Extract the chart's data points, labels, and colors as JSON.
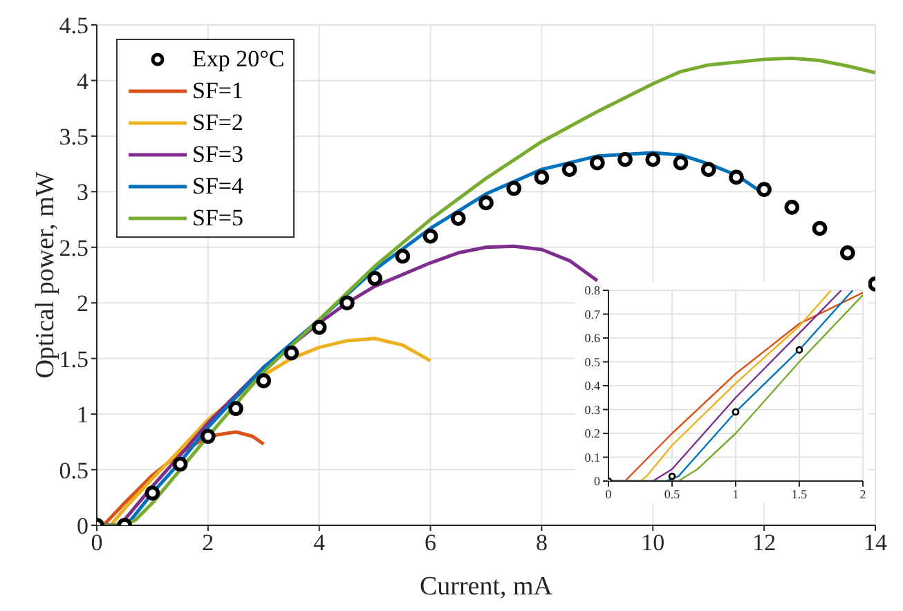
{
  "chart_data": [
    {
      "type": "line",
      "xlabel": "Current, mA",
      "ylabel": "Optical power, mW",
      "xlim": [
        0,
        14
      ],
      "ylim": [
        0,
        4.5
      ],
      "xticks": [
        0,
        2,
        4,
        6,
        8,
        10,
        12,
        14
      ],
      "yticks": [
        0,
        0.5,
        1,
        1.5,
        2,
        2.5,
        3,
        3.5,
        4,
        4.5
      ],
      "grid": true,
      "legend": "top left",
      "series": [
        {
          "name": "Exp 20°C",
          "type": "scatter",
          "marker": "circle",
          "color": "#000000",
          "x": [
            0,
            0.5,
            1,
            1.5,
            2,
            2.5,
            3,
            3.5,
            4,
            4.5,
            5,
            5.5,
            6,
            6.5,
            7,
            7.5,
            8,
            8.5,
            9,
            9.5,
            10,
            10.5,
            11,
            11.5,
            12,
            12.5,
            13,
            13.5,
            14
          ],
          "values": [
            0,
            0,
            0.29,
            0.55,
            0.8,
            1.05,
            1.3,
            1.55,
            1.78,
            2.0,
            2.22,
            2.42,
            2.6,
            2.76,
            2.9,
            3.03,
            3.13,
            3.2,
            3.26,
            3.29,
            3.29,
            3.26,
            3.2,
            3.13,
            3.02,
            2.86,
            2.67,
            2.45,
            2.17
          ]
        },
        {
          "name": "SF=1",
          "color": "#d95319",
          "x": [
            0,
            0.12,
            0.5,
            1,
            1.5,
            2,
            2.5,
            2.8,
            3
          ],
          "values": [
            0,
            0,
            0.2,
            0.45,
            0.65,
            0.8,
            0.84,
            0.8,
            0.73
          ]
        },
        {
          "name": "SF=2",
          "color": "#edb120",
          "x": [
            0,
            0.25,
            0.5,
            1,
            1.5,
            2,
            3,
            3.5,
            4,
            4.5,
            5,
            5.5,
            6
          ],
          "values": [
            0,
            0,
            0.15,
            0.42,
            0.68,
            0.95,
            1.35,
            1.5,
            1.6,
            1.66,
            1.68,
            1.62,
            1.48
          ]
        },
        {
          "name": "SF=3",
          "color": "#7e2f8e",
          "x": [
            0,
            0.35,
            0.5,
            1,
            1.5,
            2,
            3,
            4,
            4.5,
            5,
            6,
            6.5,
            7,
            7.5,
            8,
            8.5,
            9
          ],
          "values": [
            0,
            0,
            0.05,
            0.35,
            0.63,
            0.92,
            1.42,
            1.82,
            2.0,
            2.15,
            2.36,
            2.45,
            2.5,
            2.51,
            2.48,
            2.38,
            2.2
          ]
        },
        {
          "name": "SF=4",
          "color": "#0072bd",
          "x": [
            0,
            0.45,
            0.6,
            1,
            1.5,
            2,
            3,
            4,
            5,
            6,
            7,
            8,
            9,
            10,
            10.5,
            11,
            11.5,
            12
          ],
          "values": [
            0,
            0,
            0.04,
            0.29,
            0.57,
            0.88,
            1.42,
            1.85,
            2.3,
            2.67,
            2.98,
            3.2,
            3.32,
            3.35,
            3.33,
            3.25,
            3.15,
            2.98
          ]
        },
        {
          "name": "SF=5",
          "color": "#77ac30",
          "x": [
            0,
            0.5,
            0.7,
            1,
            1.5,
            2,
            3,
            4,
            5,
            6,
            7,
            8,
            9,
            10,
            10.5,
            11,
            12,
            12.5,
            13,
            13.5,
            14
          ],
          "values": [
            0,
            0,
            0.05,
            0.2,
            0.5,
            0.8,
            1.38,
            1.85,
            2.33,
            2.75,
            3.12,
            3.45,
            3.72,
            3.97,
            4.08,
            4.14,
            4.19,
            4.2,
            4.18,
            4.13,
            4.07
          ]
        }
      ]
    },
    {
      "type": "line",
      "xlim": [
        0,
        2
      ],
      "ylim": [
        0,
        0.8
      ],
      "xticks": [
        0,
        0.5,
        1,
        1.5,
        2
      ],
      "yticks": [
        0,
        0.1,
        0.2,
        0.3,
        0.4,
        0.5,
        0.6,
        0.7,
        0.8
      ],
      "grid": true,
      "series": [
        {
          "type": "scatter",
          "marker": "circle",
          "color": "#000000",
          "x": [
            0,
            0.5,
            1,
            1.5
          ],
          "values": [
            0,
            0.02,
            0.29,
            0.55
          ]
        },
        {
          "color": "#d95319",
          "x": [
            0,
            0.13,
            0.5,
            1,
            1.5,
            2
          ],
          "values": [
            0,
            0,
            0.2,
            0.45,
            0.66,
            0.79
          ]
        },
        {
          "color": "#edb120",
          "x": [
            0,
            0.25,
            0.3,
            0.5,
            1,
            1.5,
            1.75
          ],
          "values": [
            0,
            0,
            0.02,
            0.15,
            0.41,
            0.65,
            0.8
          ]
        },
        {
          "color": "#7e2f8e",
          "x": [
            0,
            0.35,
            0.5,
            1,
            1.5,
            1.83
          ],
          "values": [
            0,
            0,
            0.05,
            0.35,
            0.62,
            0.8
          ]
        },
        {
          "color": "#0072bd",
          "x": [
            0,
            0.45,
            0.55,
            0.6,
            1,
            1.5,
            1.92
          ],
          "values": [
            0,
            0,
            0.02,
            0.05,
            0.29,
            0.55,
            0.8
          ]
        },
        {
          "color": "#77ac30",
          "x": [
            0,
            0.55,
            0.7,
            1,
            1.5,
            2
          ],
          "values": [
            0,
            0,
            0.05,
            0.2,
            0.5,
            0.78
          ]
        }
      ]
    }
  ]
}
